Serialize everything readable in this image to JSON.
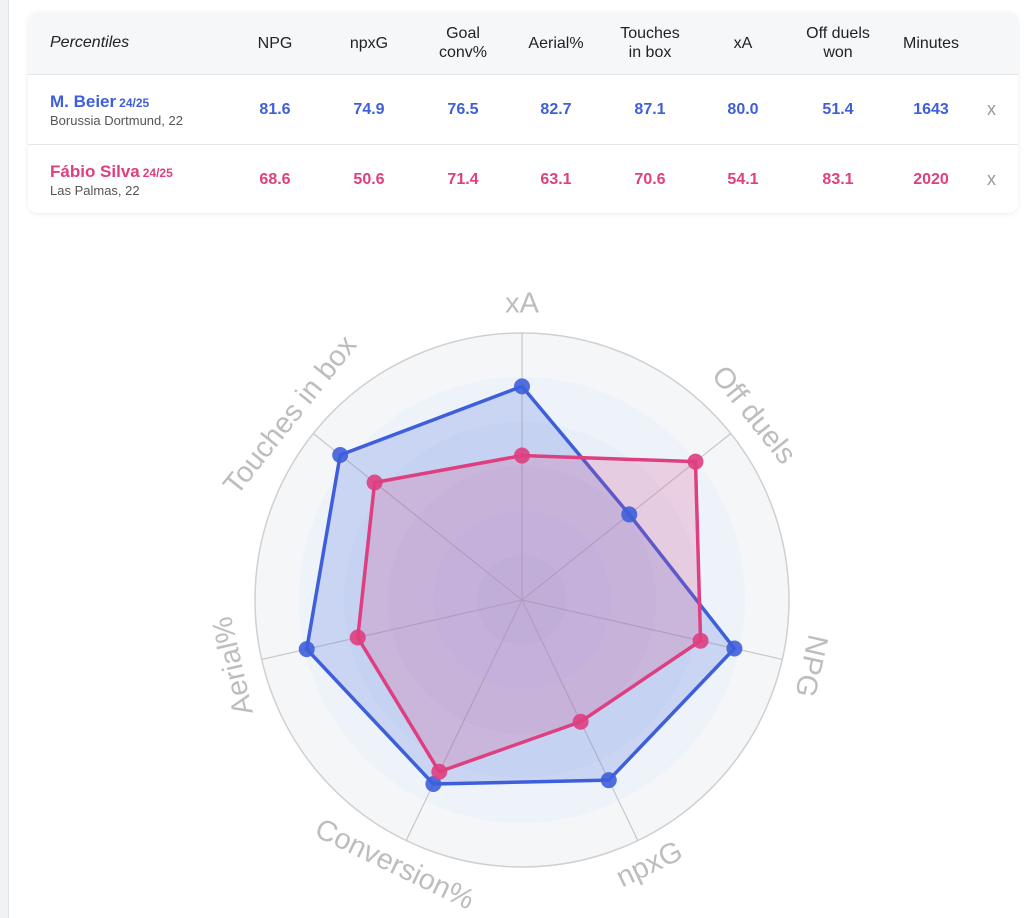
{
  "table": {
    "header": [
      "Percentiles",
      "NPG",
      "npxG",
      "Goal conv%",
      "Aerial%",
      "Touches in box",
      "xA",
      "Off duels won",
      "Minutes"
    ],
    "rows": [
      {
        "season": "24/25",
        "club": "Borussia Dortmund, 22",
        "cells": [
          "81.6",
          "74.9",
          "76.5",
          "82.7",
          "87.1",
          "80.0",
          "51.4",
          "1643"
        ],
        "remove": "x"
      },
      {
        "season": "24/25",
        "club": "Las Palmas, 22",
        "cells": [
          "68.6",
          "50.6",
          "71.4",
          "63.1",
          "70.6",
          "54.1",
          "83.1",
          "2020"
        ],
        "remove": "x"
      }
    ]
  },
  "chart_data": {
    "type": "radar",
    "axes": [
      "xA",
      "Off duels",
      "NPG",
      "npxG",
      "Conversion%",
      "Aerial%",
      "Touches in box"
    ],
    "rlim": [
      0,
      100
    ],
    "series": [
      {
        "name": "M. Beier",
        "color": "#3e5fd9",
        "values": [
          80.0,
          51.4,
          81.6,
          74.9,
          76.5,
          82.7,
          87.1
        ]
      },
      {
        "name": "Fábio Silva",
        "color": "#dd3f80",
        "values": [
          54.1,
          83.1,
          68.6,
          50.6,
          71.4,
          63.1,
          70.6
        ]
      }
    ]
  }
}
